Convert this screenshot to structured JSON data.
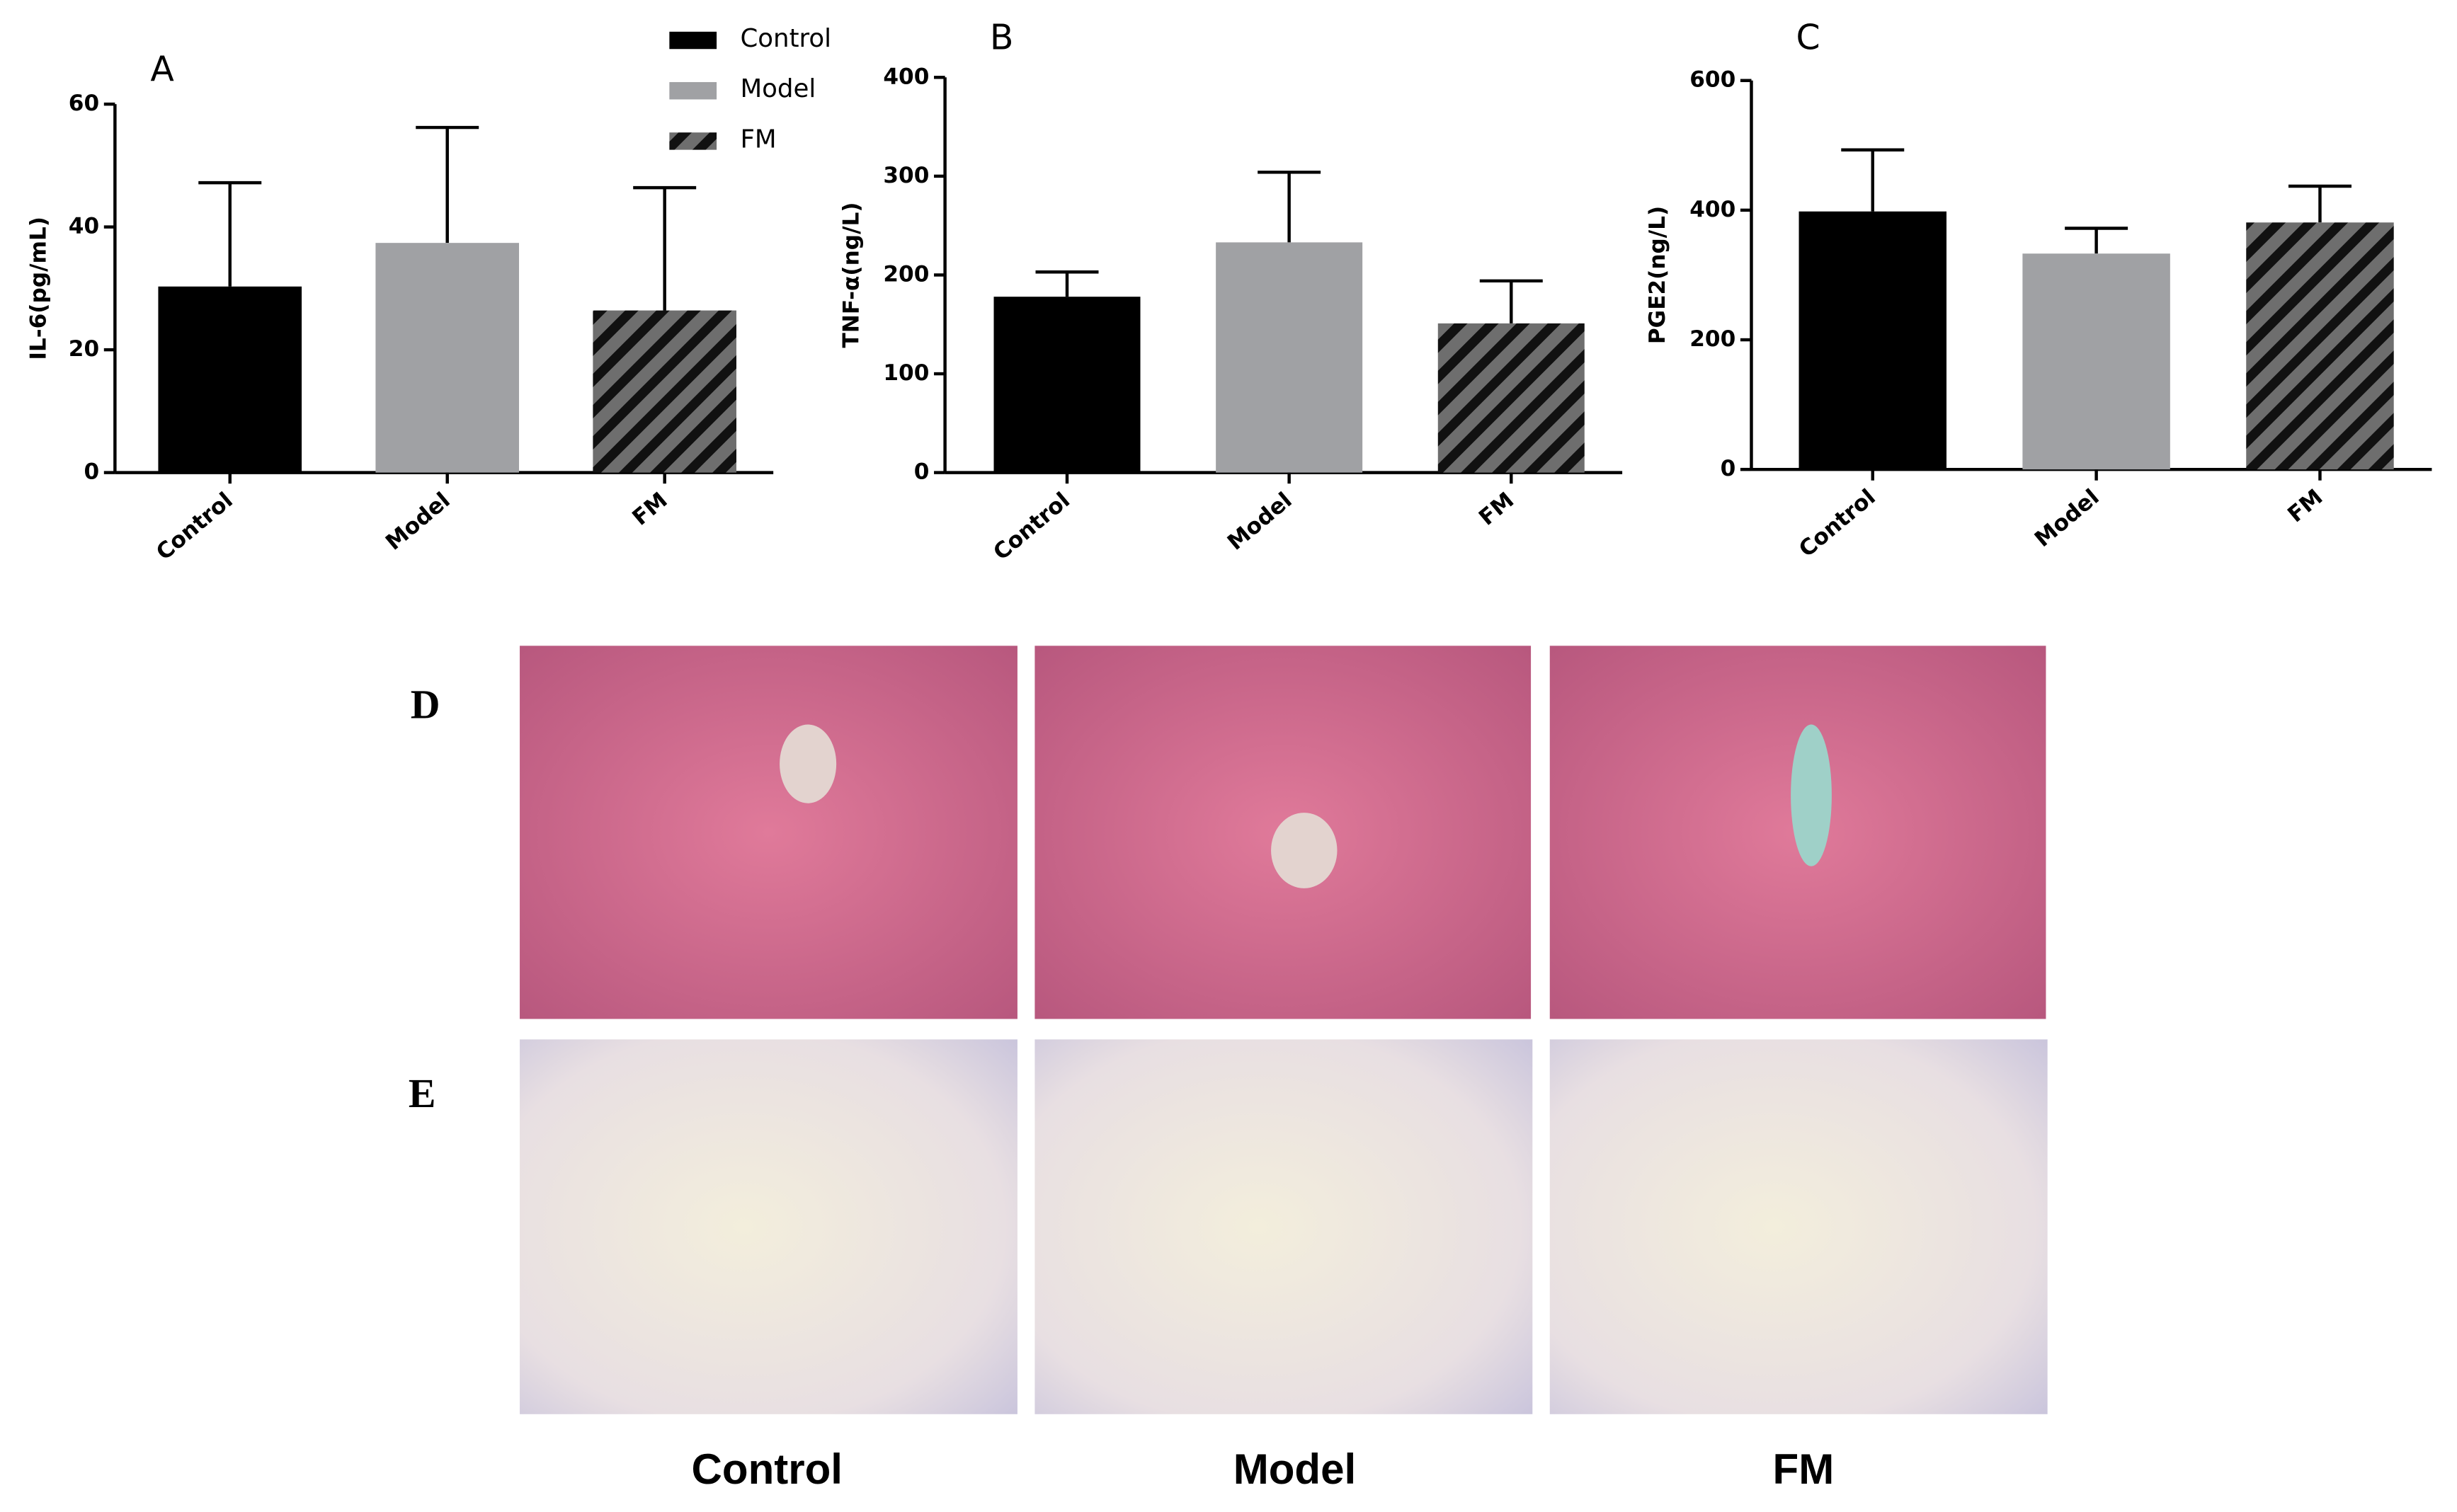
{
  "chart_data": [
    {
      "type": "bar",
      "panel": "A",
      "ylabel": "IL-6(pg/mL)",
      "categories": [
        "Control",
        "Model",
        "FM"
      ],
      "values": [
        30.3,
        37.4,
        26.4
      ],
      "errors": [
        16.9,
        18.8,
        20.0
      ],
      "colors": [
        "#000000",
        "#a0a1a4",
        "#5a5a5a"
      ],
      "hatch": [
        false,
        false,
        true
      ],
      "ylim": [
        0,
        60
      ],
      "yticks": [
        0,
        20,
        40,
        60
      ],
      "legend": [
        "Control",
        "Model",
        "FM"
      ]
    },
    {
      "type": "bar",
      "panel": "B",
      "ylabel": "TNF-α(ng/L)",
      "categories": [
        "Control",
        "Model",
        "FM"
      ],
      "values": [
        178,
        233,
        151
      ],
      "errors": [
        25,
        71,
        43
      ],
      "colors": [
        "#000000",
        "#a0a1a4",
        "#5a5a5a"
      ],
      "hatch": [
        false,
        false,
        true
      ],
      "ylim": [
        0,
        400
      ],
      "yticks": [
        0,
        100,
        200,
        300,
        400
      ]
    },
    {
      "type": "bar",
      "panel": "C",
      "ylabel": "PGE2(ng/L)",
      "categories": [
        "Control",
        "Model",
        "FM"
      ],
      "values": [
        398,
        333,
        381
      ],
      "errors": [
        95,
        39,
        56
      ],
      "colors": [
        "#000000",
        "#a0a1a4",
        "#5a5a5a"
      ],
      "hatch": [
        false,
        false,
        true
      ],
      "ylim": [
        0,
        600
      ],
      "yticks": [
        0,
        200,
        400,
        600
      ]
    }
  ],
  "histology": {
    "rows": [
      "D",
      "E"
    ],
    "columns": [
      "Control",
      "Model",
      "FM"
    ]
  }
}
